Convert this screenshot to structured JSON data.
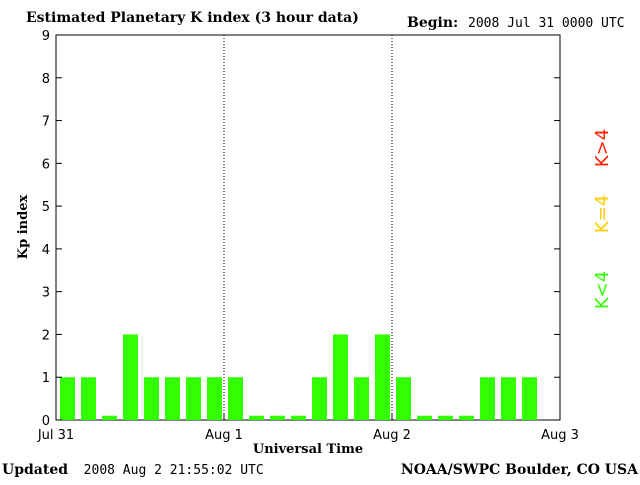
{
  "chart_data": {
    "type": "bar",
    "title": "Estimated Planetary K index (3 hour data)",
    "begin_label": "Begin:",
    "begin_value": "2008 Jul 31 0000 UTC",
    "ylabel": "Kp index",
    "xlabel": "Universal Time",
    "ylim": [
      0,
      9
    ],
    "yticks": [
      "0",
      "1",
      "2",
      "3",
      "4",
      "5",
      "6",
      "7",
      "8",
      "9"
    ],
    "xticks": [
      "Jul 31",
      "Aug 1",
      "Aug 2",
      "Aug 3"
    ],
    "values": [
      1,
      1,
      0.1,
      2,
      1,
      1,
      1,
      1,
      1,
      0.1,
      0.1,
      0.1,
      1,
      2,
      1,
      2,
      1,
      0.1,
      0.1,
      0.1,
      1,
      1,
      1
    ],
    "bar_color": "#33ff00",
    "day_separators": true,
    "legend": [
      {
        "label": "K<4",
        "color": "#33ff00"
      },
      {
        "label": "K=4",
        "color": "#ffcc00"
      },
      {
        "label": "K>4",
        "color": "#ff2200"
      }
    ]
  },
  "footer": {
    "updated_label": "Updated",
    "updated_value": "2008 Aug  2 21:55:02 UTC",
    "credit": "NOAA/SWPC Boulder, CO USA"
  }
}
